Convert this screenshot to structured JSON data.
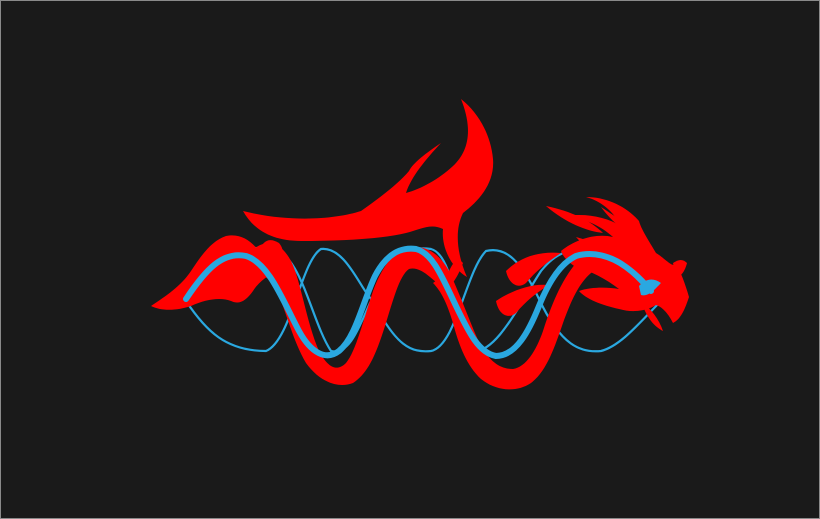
{
  "artwork": {
    "subject": "dragon-logo",
    "colors": {
      "background": "#1a1a1a",
      "frame": "#8a8a8a",
      "dragon_red": "#ff0000",
      "wave_blue": "#2aa8e0"
    }
  }
}
